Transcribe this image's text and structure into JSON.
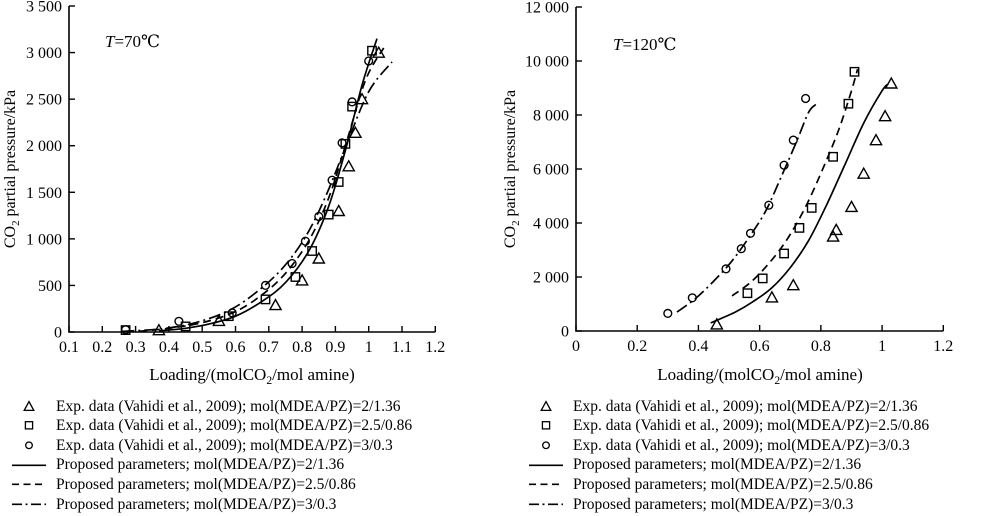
{
  "figure": {
    "background": "#ffffff",
    "ink_color": "#000000",
    "legend_position": "below"
  },
  "chart_data": [
    {
      "id": "t70",
      "type": "scatter",
      "annotation": "T=70℃",
      "xlabel": "Loading/(molCO₂/mol amine)",
      "ylabel": "CO₂ partial pressure/kPa",
      "xlim": [
        0.1,
        1.2
      ],
      "ylim": [
        0,
        3500
      ],
      "grid": false,
      "x_ticks": {
        "values": [
          0.1,
          0.2,
          0.3,
          0.4,
          0.5,
          0.6,
          0.7,
          0.8,
          0.9,
          1.0,
          1.1,
          1.2
        ],
        "labels": [
          "0.1",
          "0.2",
          "0.3",
          "0.4",
          "0.5",
          "0.6",
          "0.7",
          "0.8",
          "0.9",
          "1",
          "1.1",
          "1.2"
        ]
      },
      "y_ticks": {
        "values": [
          0,
          500,
          1000,
          1500,
          2000,
          2500,
          3000,
          3500
        ],
        "labels": [
          "0",
          "500",
          "1 000",
          "1 500",
          "2 000",
          "2 500",
          "3 000",
          "3 500"
        ]
      },
      "series": [
        {
          "name": "Exp. data (Vahidi et al., 2009); mol(MDEA/PZ)=2/1.36",
          "kind": "scatter",
          "marker": "triangle",
          "points": [
            [
              0.37,
              20
            ],
            [
              0.55,
              120
            ],
            [
              0.72,
              290
            ],
            [
              0.8,
              555
            ],
            [
              0.85,
              790
            ],
            [
              0.91,
              1300
            ],
            [
              0.94,
              1780
            ],
            [
              0.96,
              2140
            ],
            [
              0.98,
              2500
            ],
            [
              1.03,
              3000
            ]
          ]
        },
        {
          "name": "Exp. data (Vahidi et al., 2009); mol(MDEA/PZ)=2.5/0.86",
          "kind": "scatter",
          "marker": "square",
          "points": [
            [
              0.27,
              20
            ],
            [
              0.45,
              60
            ],
            [
              0.58,
              170
            ],
            [
              0.69,
              350
            ],
            [
              0.78,
              590
            ],
            [
              0.83,
              870
            ],
            [
              0.88,
              1260
            ],
            [
              0.91,
              1610
            ],
            [
              0.93,
              2020
            ],
            [
              0.95,
              2420
            ],
            [
              1.01,
              3020
            ]
          ]
        },
        {
          "name": "Exp. data (Vahidi et al., 2009); mol(MDEA/PZ)=3/0.3",
          "kind": "scatter",
          "marker": "circle",
          "points": [
            [
              0.27,
              25
            ],
            [
              0.43,
              115
            ],
            [
              0.59,
              205
            ],
            [
              0.69,
              500
            ],
            [
              0.77,
              735
            ],
            [
              0.81,
              975
            ],
            [
              0.85,
              1240
            ],
            [
              0.89,
              1630
            ],
            [
              0.92,
              2030
            ],
            [
              0.95,
              2470
            ],
            [
              1.0,
              2910
            ]
          ]
        },
        {
          "name": "Proposed parameters; mol(MDEA/PZ)=2/1.36",
          "kind": "line",
          "style": "solid",
          "points": [
            [
              0.37,
              12
            ],
            [
              0.45,
              40
            ],
            [
              0.52,
              85
            ],
            [
              0.6,
              170
            ],
            [
              0.68,
              330
            ],
            [
              0.75,
              530
            ],
            [
              0.82,
              870
            ],
            [
              0.88,
              1350
            ],
            [
              0.93,
              1950
            ],
            [
              0.98,
              2650
            ],
            [
              1.025,
              3150
            ]
          ]
        },
        {
          "name": "Proposed parameters; mol(MDEA/PZ)=2.5/0.86",
          "kind": "line",
          "style": "dashed",
          "points": [
            [
              0.31,
              8
            ],
            [
              0.4,
              40
            ],
            [
              0.5,
              100
            ],
            [
              0.6,
              220
            ],
            [
              0.68,
              400
            ],
            [
              0.75,
              630
            ],
            [
              0.82,
              980
            ],
            [
              0.88,
              1440
            ],
            [
              0.93,
              2000
            ],
            [
              0.99,
              2700
            ],
            [
              1.045,
              3050
            ]
          ]
        },
        {
          "name": "Proposed parameters; mol(MDEA/PZ)=3/0.3",
          "kind": "line",
          "style": "dashdot",
          "points": [
            [
              0.26,
              6
            ],
            [
              0.38,
              35
            ],
            [
              0.48,
              100
            ],
            [
              0.58,
              230
            ],
            [
              0.66,
              420
            ],
            [
              0.74,
              680
            ],
            [
              0.81,
              1020
            ],
            [
              0.87,
              1450
            ],
            [
              0.93,
              1980
            ],
            [
              1.0,
              2580
            ],
            [
              1.07,
              2900
            ]
          ]
        }
      ],
      "legend": [
        {
          "symbol": "triangle",
          "label": "Exp. data (Vahidi et al., 2009); mol(MDEA/PZ)=2/1.36"
        },
        {
          "symbol": "square",
          "label": "Exp. data (Vahidi et al., 2009); mol(MDEA/PZ)=2.5/0.86"
        },
        {
          "symbol": "circle",
          "label": "Exp. data (Vahidi et al., 2009); mol(MDEA/PZ)=3/0.3"
        },
        {
          "symbol": "line-solid",
          "label": "Proposed parameters; mol(MDEA/PZ)=2/1.36"
        },
        {
          "symbol": "line-dashed",
          "label": "Proposed parameters; mol(MDEA/PZ)=2.5/0.86"
        },
        {
          "symbol": "line-dashdot",
          "label": "Proposed parameters; mol(MDEA/PZ)=3/0.3"
        }
      ]
    },
    {
      "id": "t120",
      "type": "scatter",
      "annotation": "T=120℃",
      "xlabel": "Loading/(molCO₂/mol amine)",
      "ylabel": "CO₂ partial pressure/kPa",
      "xlim": [
        0,
        1.2
      ],
      "ylim": [
        0,
        12000
      ],
      "grid": false,
      "x_ticks": {
        "values": [
          0,
          0.2,
          0.4,
          0.6,
          0.8,
          1.0,
          1.2
        ],
        "labels": [
          "0",
          "0.2",
          "0.4",
          "0.6",
          "0.8",
          "1",
          "1.2"
        ]
      },
      "y_ticks": {
        "values": [
          0,
          2000,
          4000,
          6000,
          8000,
          10000,
          12000
        ],
        "labels": [
          "0",
          "2 000",
          "4 000",
          "6 000",
          "8 000",
          "10 000",
          "12 000"
        ]
      },
      "series": [
        {
          "name": "Exp. data (Vahidi et al., 2009); mol(MDEA/PZ)=2/1.36",
          "kind": "scatter",
          "marker": "triangle",
          "points": [
            [
              0.46,
              250
            ],
            [
              0.64,
              1250
            ],
            [
              0.71,
              1700
            ],
            [
              0.84,
              3500
            ],
            [
              0.85,
              3750
            ],
            [
              0.9,
              4600
            ],
            [
              0.94,
              5830
            ],
            [
              0.98,
              7070
            ],
            [
              1.01,
              7960
            ],
            [
              1.03,
              9170
            ]
          ]
        },
        {
          "name": "Exp. data (Vahidi et al., 2009); mol(MDEA/PZ)=2.5/0.86",
          "kind": "scatter",
          "marker": "square",
          "points": [
            [
              0.56,
              1400
            ],
            [
              0.61,
              1950
            ],
            [
              0.68,
              2870
            ],
            [
              0.73,
              3820
            ],
            [
              0.77,
              4560
            ],
            [
              0.84,
              6450
            ],
            [
              0.89,
              8420
            ],
            [
              0.91,
              9600
            ]
          ]
        },
        {
          "name": "Exp. data (Vahidi et al., 2009); mol(MDEA/PZ)=3/0.3",
          "kind": "scatter",
          "marker": "circle",
          "points": [
            [
              0.3,
              650
            ],
            [
              0.38,
              1230
            ],
            [
              0.49,
              2300
            ],
            [
              0.54,
              3050
            ],
            [
              0.57,
              3620
            ],
            [
              0.63,
              4660
            ],
            [
              0.68,
              6140
            ],
            [
              0.71,
              7070
            ],
            [
              0.75,
              8610
            ]
          ]
        },
        {
          "name": "Proposed parameters; mol(MDEA/PZ)=2/1.36",
          "kind": "line",
          "style": "solid",
          "points": [
            [
              0.44,
              300
            ],
            [
              0.52,
              700
            ],
            [
              0.58,
              1100
            ],
            [
              0.64,
              1600
            ],
            [
              0.7,
              2350
            ],
            [
              0.76,
              3350
            ],
            [
              0.82,
              4700
            ],
            [
              0.88,
              6200
            ],
            [
              0.94,
              7700
            ],
            [
              1.0,
              8900
            ],
            [
              1.02,
              9150
            ]
          ]
        },
        {
          "name": "Proposed parameters; mol(MDEA/PZ)=2.5/0.86",
          "kind": "line",
          "style": "dashed",
          "points": [
            [
              0.51,
              1300
            ],
            [
              0.57,
              1800
            ],
            [
              0.63,
              2500
            ],
            [
              0.69,
              3400
            ],
            [
              0.75,
              4600
            ],
            [
              0.81,
              6100
            ],
            [
              0.86,
              7500
            ],
            [
              0.9,
              8900
            ],
            [
              0.92,
              9700
            ]
          ]
        },
        {
          "name": "Proposed parameters; mol(MDEA/PZ)=3/0.3",
          "kind": "line",
          "style": "dashdot",
          "points": [
            [
              0.33,
              700
            ],
            [
              0.39,
              1200
            ],
            [
              0.45,
              1850
            ],
            [
              0.51,
              2600
            ],
            [
              0.57,
              3550
            ],
            [
              0.62,
              4450
            ],
            [
              0.67,
              5700
            ],
            [
              0.72,
              7000
            ],
            [
              0.76,
              8100
            ],
            [
              0.785,
              8400
            ]
          ]
        }
      ],
      "legend": [
        {
          "symbol": "triangle",
          "label": "Exp. data (Vahidi et al., 2009); mol(MDEA/PZ)=2/1.36"
        },
        {
          "symbol": "square",
          "label": "Exp. data (Vahidi et al., 2009); mol(MDEA/PZ)=2.5/0.86"
        },
        {
          "symbol": "circle",
          "label": "Exp. data (Vahidi et al., 2009); mol(MDEA/PZ)=3/0.3"
        },
        {
          "symbol": "line-solid",
          "label": "Proposed parameters; mol(MDEA/PZ)=2/1.36"
        },
        {
          "symbol": "line-dashed",
          "label": "Proposed parameters; mol(MDEA/PZ)=2.5/0.86"
        },
        {
          "symbol": "line-dashdot",
          "label": "Proposed parameters; mol(MDEA/PZ)=3/0.3"
        }
      ]
    }
  ]
}
